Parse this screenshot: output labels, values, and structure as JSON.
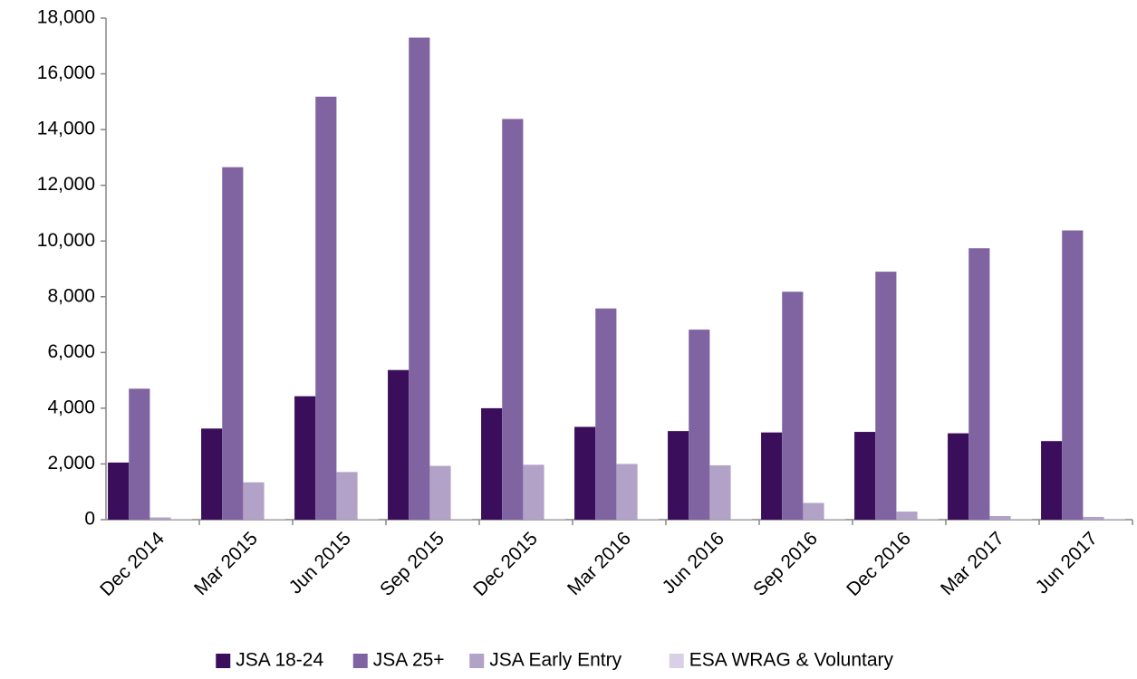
{
  "chart_data": {
    "type": "bar",
    "categories": [
      "Dec 2014",
      "Mar 2015",
      "Jun 2015",
      "Sep 2015",
      "Dec 2015",
      "Mar 2016",
      "Jun 2016",
      "Sep 2016",
      "Dec 2016",
      "Mar 2017",
      "Jun 2017"
    ],
    "series": [
      {
        "name": "JSA 18-24",
        "color": "#3b0e5c",
        "values": [
          2050,
          3270,
          4430,
          5370,
          4000,
          3330,
          3180,
          3130,
          3150,
          3100,
          2820
        ]
      },
      {
        "name": "JSA 25+",
        "color": "#8064a2",
        "values": [
          4700,
          12650,
          15180,
          17300,
          14380,
          7580,
          6820,
          8180,
          8900,
          9740,
          10380
        ]
      },
      {
        "name": "JSA Early Entry",
        "color": "#b3a2c7",
        "values": [
          80,
          1340,
          1710,
          1930,
          1970,
          2000,
          1950,
          600,
          290,
          130,
          100
        ]
      },
      {
        "name": "ESA WRAG & Voluntary",
        "color": "#d9d0e6",
        "values": [
          20,
          20,
          20,
          20,
          20,
          20,
          20,
          20,
          20,
          20,
          20
        ]
      }
    ],
    "ylim": [
      0,
      18000
    ],
    "yticks": [
      0,
      {
        "value": 2000,
        "label": "2,000"
      },
      {
        "value": 4000,
        "label": "4,000"
      },
      {
        "value": 6000,
        "label": "6,000"
      },
      {
        "value": 8000,
        "label": "8,000"
      },
      {
        "value": 10000,
        "label": "10,000"
      },
      {
        "value": 12000,
        "label": "12,000"
      },
      {
        "value": 14000,
        "label": "14,000"
      },
      {
        "value": 16000,
        "label": "16,000"
      },
      {
        "value": 18000,
        "label": "18,000"
      }
    ],
    "grid": false,
    "legend": "bottom"
  }
}
